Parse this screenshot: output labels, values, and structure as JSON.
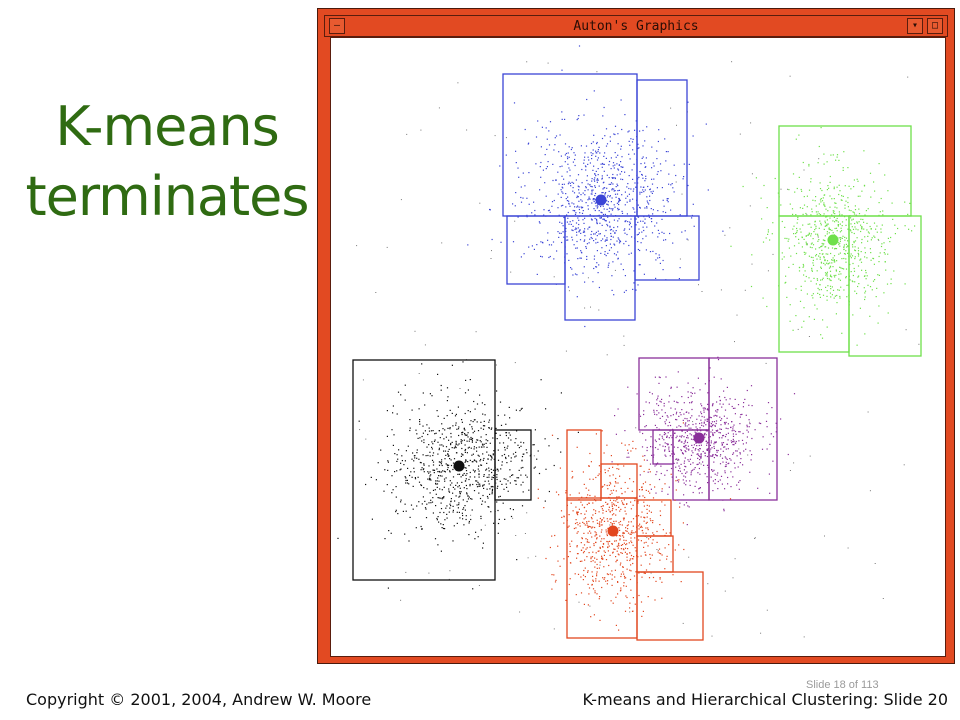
{
  "slide": {
    "title_line1": "K-means",
    "title_line2": "terminates"
  },
  "window": {
    "title": "Auton's Graphics",
    "menu_glyph": "—",
    "minimize_glyph": "▾",
    "maximize_glyph": "□"
  },
  "clusters": [
    {
      "name": "blue",
      "color": "#3b45d6"
    },
    {
      "name": "green",
      "color": "#6ee04a"
    },
    {
      "name": "black",
      "color": "#111111"
    },
    {
      "name": "purple",
      "color": "#8a2f9a"
    },
    {
      "name": "red",
      "color": "#e2471f"
    }
  ],
  "footer": {
    "copyright": "Copyright © 2001, 2004, Andrew W. Moore",
    "course": "K-means and Hierarchical Clustering: Slide 20",
    "slide_counter": "Slide 18 of 113"
  }
}
